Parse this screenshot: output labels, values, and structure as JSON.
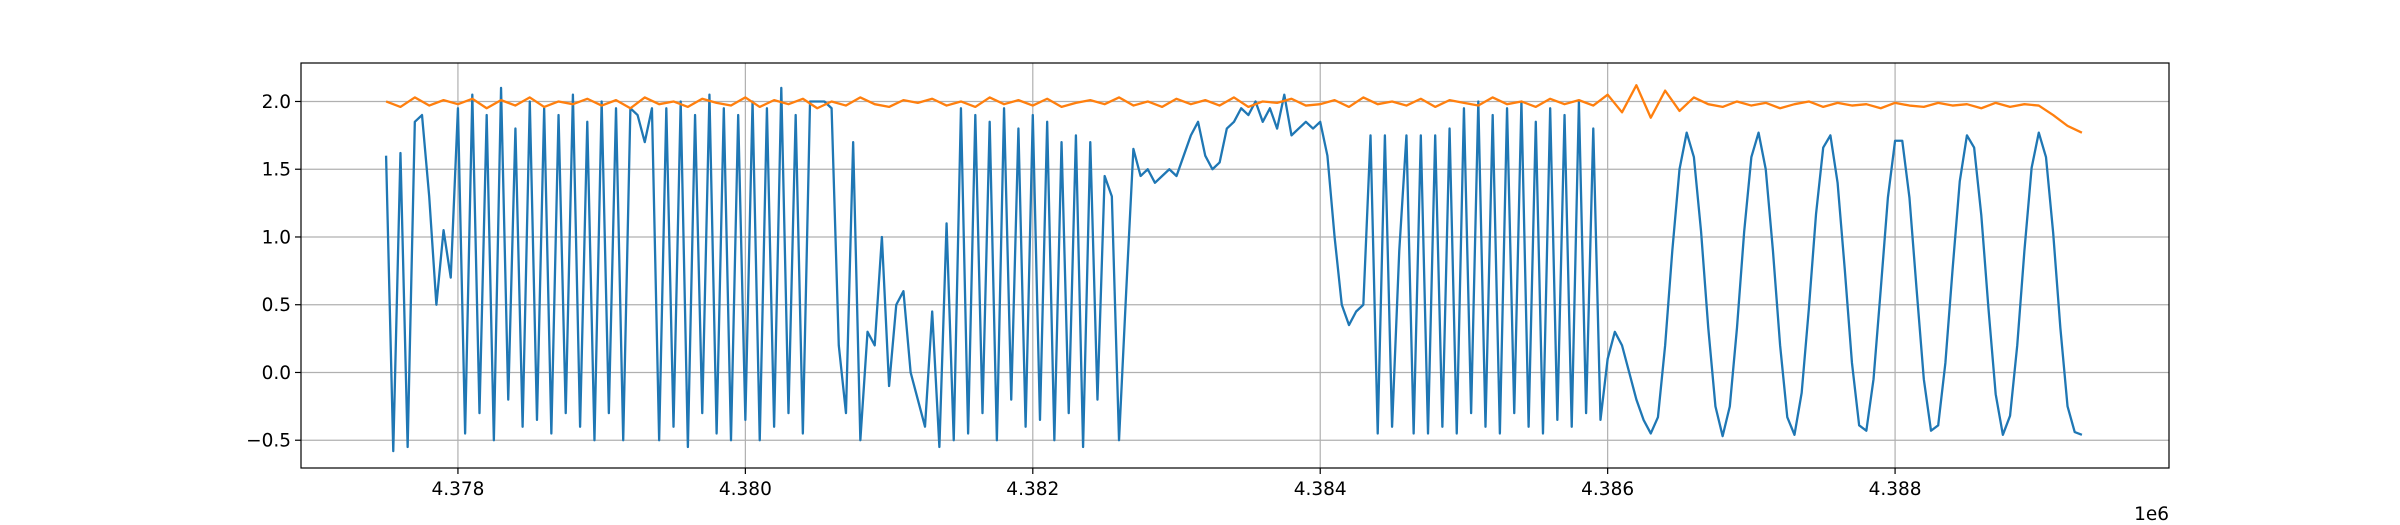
{
  "chart_data": {
    "type": "line",
    "grid": true,
    "xlim": [
      4376908,
      4389906
    ],
    "ylim": [
      -0.705,
      2.284
    ],
    "xticks": [
      {
        "value": 4378000,
        "label": "4.378"
      },
      {
        "value": 4380000,
        "label": "4.380"
      },
      {
        "value": 4382000,
        "label": "4.382"
      },
      {
        "value": 4384000,
        "label": "4.384"
      },
      {
        "value": 4386000,
        "label": "4.386"
      },
      {
        "value": 4388000,
        "label": "4.388"
      }
    ],
    "x_offset_label": "1e6",
    "yticks": [
      {
        "value": -0.5,
        "label": "−0.5"
      },
      {
        "value": 0,
        "label": "0.0"
      },
      0.5,
      {
        "value": 1,
        "label": "1.0"
      },
      1.5,
      {
        "value": 2,
        "label": "2.0"
      }
    ],
    "series": [
      {
        "color": "#1f77b4",
        "x": [
          4377500,
          4377550,
          4377600,
          4377650,
          4377700,
          4377750,
          4377800,
          4377850,
          4377900,
          4377950,
          4378000,
          4378050,
          4378100,
          4378150,
          4378200,
          4378250,
          4378300,
          4378350,
          4378400,
          4378450,
          4378500,
          4378550,
          4378600,
          4378650,
          4378700,
          4378750,
          4378800,
          4378850,
          4378900,
          4378950,
          4379000,
          4379050,
          4379100,
          4379150,
          4379200,
          4379250,
          4379300,
          4379350,
          4379400,
          4379450,
          4379500,
          4379550,
          4379600,
          4379650,
          4379700,
          4379750,
          4379800,
          4379850,
          4379900,
          4379950,
          4380000,
          4380050,
          4380100,
          4380150,
          4380200,
          4380250,
          4380300,
          4380350,
          4380400,
          4380450,
          4380500,
          4380550,
          4380600,
          4380650,
          4380700,
          4380750,
          4380800,
          4380850,
          4380900,
          4380950,
          4381000,
          4381050,
          4381100,
          4381150,
          4381200,
          4381250,
          4381300,
          4381350,
          4381400,
          4381450,
          4381500,
          4381550,
          4381600,
          4381650,
          4381700,
          4381750,
          4381800,
          4381850,
          4381900,
          4381950,
          4382000,
          4382050,
          4382100,
          4382150,
          4382200,
          4382250,
          4382300,
          4382350,
          4382400,
          4382450,
          4382500,
          4382550,
          4382600,
          4382650,
          4382700,
          4382750,
          4382800,
          4382850,
          4382900,
          4382950,
          4383000,
          4383050,
          4383100,
          4383150,
          4383200,
          4383250,
          4383300,
          4383350,
          4383400,
          4383450,
          4383500,
          4383550,
          4383600,
          4383650,
          4383700,
          4383750,
          4383800,
          4383850,
          4383900,
          4383950,
          4384000,
          4384050,
          4384100,
          4384150,
          4384200,
          4384250,
          4384300,
          4384350,
          4384400,
          4384450,
          4384500,
          4384550,
          4384600,
          4384650,
          4384700,
          4384750,
          4384800,
          4384850,
          4384900,
          4384950,
          4385000,
          4385050,
          4385100,
          4385150,
          4385200,
          4385250,
          4385300,
          4385350,
          4385400,
          4385450,
          4385500,
          4385550,
          4385600,
          4385650,
          4385700,
          4385750,
          4385800,
          4385850,
          4385900,
          4385950,
          4386000,
          4386050,
          4386100,
          4386150,
          4386200,
          4386250,
          4386300,
          4386350,
          4386400,
          4386450,
          4386500,
          4386550,
          4386600,
          4386650,
          4386700,
          4386750,
          4386800,
          4386850,
          4386900,
          4386950,
          4387000,
          4387050,
          4387100,
          4387150,
          4387200,
          4387250,
          4387300,
          4387350,
          4387400,
          4387450,
          4387500,
          4387550,
          4387600,
          4387650,
          4387700,
          4387750,
          4387800,
          4387850,
          4387900,
          4387950,
          4388000,
          4388050,
          4388100,
          4388150,
          4388200,
          4388250,
          4388300,
          4388350,
          4388400,
          4388450,
          4388500,
          4388550,
          4388600,
          4388650,
          4388700,
          4388750,
          4388800,
          4388850,
          4388900,
          4388950,
          4389000,
          4389050,
          4389100,
          4389150,
          4389200,
          4389250,
          4389300
        ],
        "values": [
          1.6,
          -0.58,
          1.62,
          -0.55,
          1.85,
          1.9,
          1.3,
          0.5,
          1.05,
          0.7,
          1.95,
          -0.45,
          2.05,
          -0.3,
          1.9,
          -0.5,
          2.1,
          -0.2,
          1.8,
          -0.4,
          2.0,
          -0.35,
          1.95,
          -0.45,
          1.9,
          -0.3,
          2.05,
          -0.4,
          1.85,
          -0.5,
          2.0,
          -0.3,
          1.95,
          -0.5,
          1.95,
          1.9,
          1.7,
          1.95,
          -0.5,
          1.95,
          -0.4,
          2.0,
          -0.55,
          1.9,
          -0.3,
          2.05,
          -0.45,
          1.95,
          -0.5,
          1.9,
          -0.35,
          2.0,
          -0.5,
          1.95,
          -0.4,
          2.1,
          -0.3,
          1.9,
          -0.45,
          2.0,
          2.0,
          2.0,
          1.95,
          0.2,
          -0.3,
          1.7,
          -0.5,
          0.3,
          0.2,
          1.0,
          -0.1,
          0.5,
          0.6,
          0.0,
          -0.2,
          -0.4,
          0.45,
          -0.55,
          1.1,
          -0.5,
          1.95,
          -0.45,
          1.9,
          -0.3,
          1.85,
          -0.5,
          1.95,
          -0.2,
          1.8,
          -0.4,
          1.9,
          -0.35,
          1.85,
          -0.5,
          1.7,
          -0.3,
          1.75,
          -0.55,
          1.7,
          -0.2,
          1.45,
          1.3,
          -0.5,
          0.6,
          1.65,
          1.45,
          1.5,
          1.4,
          1.45,
          1.5,
          1.45,
          1.6,
          1.75,
          1.85,
          1.6,
          1.5,
          1.55,
          1.8,
          1.85,
          1.95,
          1.9,
          2.0,
          1.85,
          1.95,
          1.8,
          2.05,
          1.75,
          1.8,
          1.85,
          1.8,
          1.85,
          1.6,
          1.0,
          0.5,
          0.35,
          0.45,
          0.5,
          1.75,
          -0.45,
          1.75,
          -0.4,
          0.9,
          1.75,
          -0.45,
          1.75,
          -0.45,
          1.75,
          -0.4,
          1.8,
          -0.45,
          1.95,
          -0.3,
          2.0,
          -0.4,
          1.9,
          -0.45,
          1.95,
          -0.3,
          2.0,
          -0.4,
          1.85,
          -0.45,
          1.95,
          -0.35,
          1.9,
          -0.4,
          2.0,
          -0.3,
          1.8,
          -0.35,
          0.1,
          0.3,
          0.2,
          0.0,
          -0.2,
          -0.35,
          -0.45,
          -0.33,
          0.2,
          0.9,
          1.5,
          1.77,
          1.59,
          1.04,
          0.33,
          -0.25,
          -0.47,
          -0.25,
          0.33,
          1.04,
          1.59,
          1.77,
          1.5,
          0.9,
          0.2,
          -0.33,
          -0.46,
          -0.15,
          0.47,
          1.17,
          1.66,
          1.75,
          1.4,
          0.76,
          0.07,
          -0.39,
          -0.43,
          -0.05,
          0.61,
          1.29,
          1.71,
          1.71,
          1.29,
          0.61,
          -0.05,
          -0.43,
          -0.39,
          0.07,
          0.76,
          1.41,
          1.75,
          1.66,
          1.16,
          0.47,
          -0.16,
          -0.46,
          -0.32,
          0.2,
          0.9,
          1.51,
          1.77,
          1.59,
          1.03,
          0.33,
          -0.25,
          -0.44,
          -0.46
        ]
      },
      {
        "color": "#ff7f0e",
        "x": [
          4377500,
          4377600,
          4377700,
          4377800,
          4377900,
          4378000,
          4378100,
          4378200,
          4378300,
          4378400,
          4378500,
          4378600,
          4378700,
          4378800,
          4378900,
          4379000,
          4379100,
          4379200,
          4379300,
          4379400,
          4379500,
          4379600,
          4379700,
          4379800,
          4379900,
          4380000,
          4380100,
          4380200,
          4380300,
          4380400,
          4380500,
          4380600,
          4380700,
          4380800,
          4380900,
          4381000,
          4381100,
          4381200,
          4381300,
          4381400,
          4381500,
          4381600,
          4381700,
          4381800,
          4381900,
          4382000,
          4382100,
          4382200,
          4382300,
          4382400,
          4382500,
          4382600,
          4382700,
          4382800,
          4382900,
          4383000,
          4383100,
          4383200,
          4383300,
          4383400,
          4383500,
          4383600,
          4383700,
          4383800,
          4383900,
          4384000,
          4384100,
          4384200,
          4384300,
          4384400,
          4384500,
          4384600,
          4384700,
          4384800,
          4384900,
          4385000,
          4385100,
          4385200,
          4385300,
          4385400,
          4385500,
          4385600,
          4385700,
          4385800,
          4385900,
          4386000,
          4386100,
          4386200,
          4386300,
          4386400,
          4386500,
          4386600,
          4386700,
          4386800,
          4386900,
          4387000,
          4387100,
          4387200,
          4387300,
          4387400,
          4387500,
          4387600,
          4387700,
          4387800,
          4387900,
          4388000,
          4388100,
          4388200,
          4388300,
          4388400,
          4388500,
          4388600,
          4388700,
          4388800,
          4388900,
          4389000,
          4389100,
          4389200,
          4389300
        ],
        "values": [
          2.0,
          1.96,
          2.03,
          1.97,
          2.01,
          1.98,
          2.02,
          1.95,
          2.01,
          1.97,
          2.03,
          1.96,
          2.0,
          1.98,
          2.02,
          1.97,
          2.01,
          1.95,
          2.03,
          1.98,
          2.0,
          1.96,
          2.02,
          1.99,
          1.97,
          2.03,
          1.96,
          2.01,
          1.98,
          2.02,
          1.95,
          2.0,
          1.97,
          2.03,
          1.98,
          1.96,
          2.01,
          1.99,
          2.02,
          1.97,
          2.0,
          1.96,
          2.03,
          1.98,
          2.01,
          1.97,
          2.02,
          1.96,
          1.99,
          2.01,
          1.98,
          2.03,
          1.97,
          2.0,
          1.96,
          2.02,
          1.98,
          2.01,
          1.97,
          2.03,
          1.96,
          2.0,
          1.99,
          2.02,
          1.97,
          1.98,
          2.01,
          1.96,
          2.03,
          1.98,
          2.0,
          1.97,
          2.02,
          1.96,
          2.01,
          1.99,
          1.97,
          2.03,
          1.98,
          2.0,
          1.96,
          2.02,
          1.98,
          2.01,
          1.97,
          2.05,
          1.92,
          2.12,
          1.88,
          2.08,
          1.93,
          2.03,
          1.98,
          1.96,
          2.0,
          1.97,
          1.99,
          1.95,
          1.98,
          2.0,
          1.96,
          1.99,
          1.97,
          1.98,
          1.95,
          1.99,
          1.97,
          1.96,
          1.99,
          1.97,
          1.98,
          1.95,
          1.99,
          1.96,
          1.98,
          1.97,
          1.9,
          1.82,
          1.77
        ]
      }
    ]
  }
}
